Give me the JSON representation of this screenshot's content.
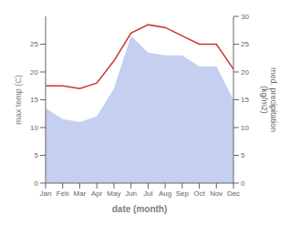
{
  "chart_data": {
    "type": "line",
    "categories": [
      "Jan",
      "Feb",
      "Mar",
      "Apr",
      "May",
      "Jun",
      "Jul",
      "Aug",
      "Sep",
      "Oct",
      "Nov",
      "Dec"
    ],
    "xlabel": "date (month)",
    "ylabel": "max temp (C)",
    "y2label": "med. precipitation\n(kg/m2)",
    "ylim": [
      0,
      30
    ],
    "yticks": [
      0,
      5,
      10,
      15,
      20,
      25
    ],
    "y2lim": [
      0,
      30
    ],
    "y2ticks": [
      0,
      5,
      10,
      15,
      20,
      25,
      30
    ],
    "grid": false,
    "series": [
      {
        "type": "area",
        "axis": "y2",
        "color": "#c5cff0",
        "values": [
          13.5,
          11.5,
          11.0,
          12.0,
          17.0,
          26.5,
          23.5,
          23.0,
          23.0,
          21.0,
          21.0,
          15.0
        ]
      },
      {
        "type": "line",
        "color": "#cc3333",
        "values": [
          17.5,
          17.5,
          17.0,
          18.0,
          22.0,
          27.0,
          28.5,
          28.0,
          26.5,
          25.0,
          25.0,
          20.5
        ]
      }
    ]
  }
}
